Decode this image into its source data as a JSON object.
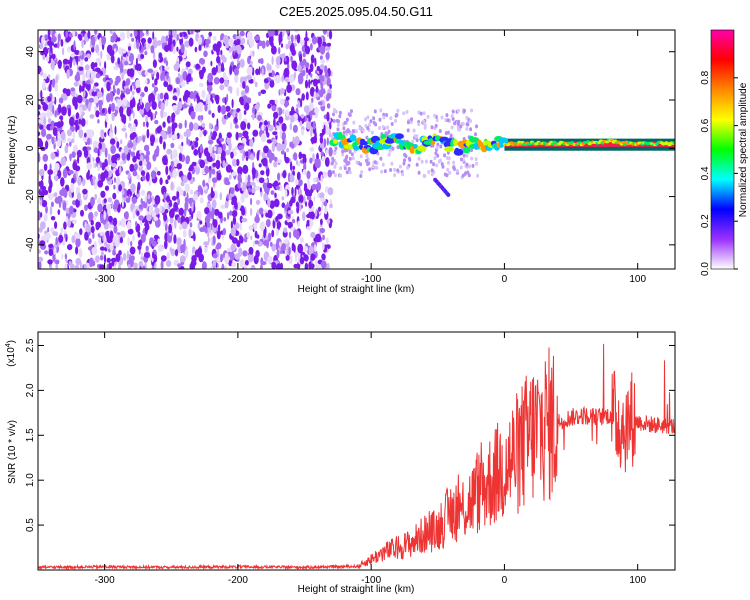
{
  "title": "C2E5.2025.095.04.50.G11",
  "chart_data": [
    {
      "type": "heatmap",
      "panel": "spectrogram",
      "xlabel": "Height of straight line (km)",
      "ylabel": "Frequency (Hz)",
      "xlim": [
        -350,
        128
      ],
      "ylim": [
        -50,
        49
      ],
      "xticks": [
        -300,
        -200,
        -100,
        0,
        100
      ],
      "yticks": [
        -40,
        -20,
        0,
        20,
        40
      ],
      "noise_region": [
        -350,
        -130
      ],
      "signal_region": [
        -130,
        128
      ],
      "signal_trace": {
        "x": [
          -130,
          -120,
          -110,
          -100,
          -90,
          -80,
          -70,
          -60,
          -50,
          -40,
          -30,
          -20,
          -10,
          0,
          20,
          40,
          60,
          80,
          90,
          100,
          110,
          128
        ],
        "y": [
          4,
          3,
          2,
          1,
          3,
          4,
          0,
          2,
          6,
          1,
          0,
          3,
          1,
          2,
          2,
          2,
          2,
          3,
          2,
          2,
          2,
          2
        ]
      },
      "colorbar": {
        "label": "Normalized spectral amplitude",
        "range": [
          0,
          1
        ],
        "ticks": [
          "0.0",
          "0.2",
          "0.4",
          "0.6",
          "0.8"
        ],
        "colors": [
          "#ffffff",
          "#9b30ff",
          "#0000ff",
          "#00ffff",
          "#00ff00",
          "#ffff00",
          "#ff8800",
          "#ff0000",
          "#ff00aa"
        ]
      }
    },
    {
      "type": "line",
      "panel": "snr",
      "xlabel": "Height of straight line (km)",
      "ylabel": "SNR (10 * v/v)",
      "multiplier": "(x10",
      "multiplier_exp": "4",
      "xlim": [
        -350,
        128
      ],
      "ylim": [
        0,
        26500
      ],
      "xticks": [
        -300,
        -200,
        -100,
        0,
        100
      ],
      "yticks": [
        "0.5",
        "1.0",
        "1.5",
        "2.0",
        "2.5"
      ],
      "yticks_values": [
        5000,
        10000,
        15000,
        20000,
        25000
      ],
      "series": [
        {
          "color": "#ee3333",
          "x": [
            -350,
            -300,
            -250,
            -200,
            -150,
            -110,
            -100,
            -90,
            -80,
            -70,
            -60,
            -50,
            -40,
            -30,
            -20,
            -10,
            0,
            10,
            20,
            30,
            40,
            50,
            60,
            70,
            80,
            90,
            95,
            100,
            110,
            128
          ],
          "y": [
            300,
            350,
            300,
            350,
            300,
            400,
            1200,
            2000,
            2500,
            3000,
            4000,
            4500,
            6500,
            7000,
            8500,
            10000,
            11500,
            13000,
            15000,
            16000,
            16500,
            17000,
            17200,
            17000,
            17300,
            16000,
            17000,
            16500,
            16200,
            16000
          ]
        }
      ]
    }
  ]
}
